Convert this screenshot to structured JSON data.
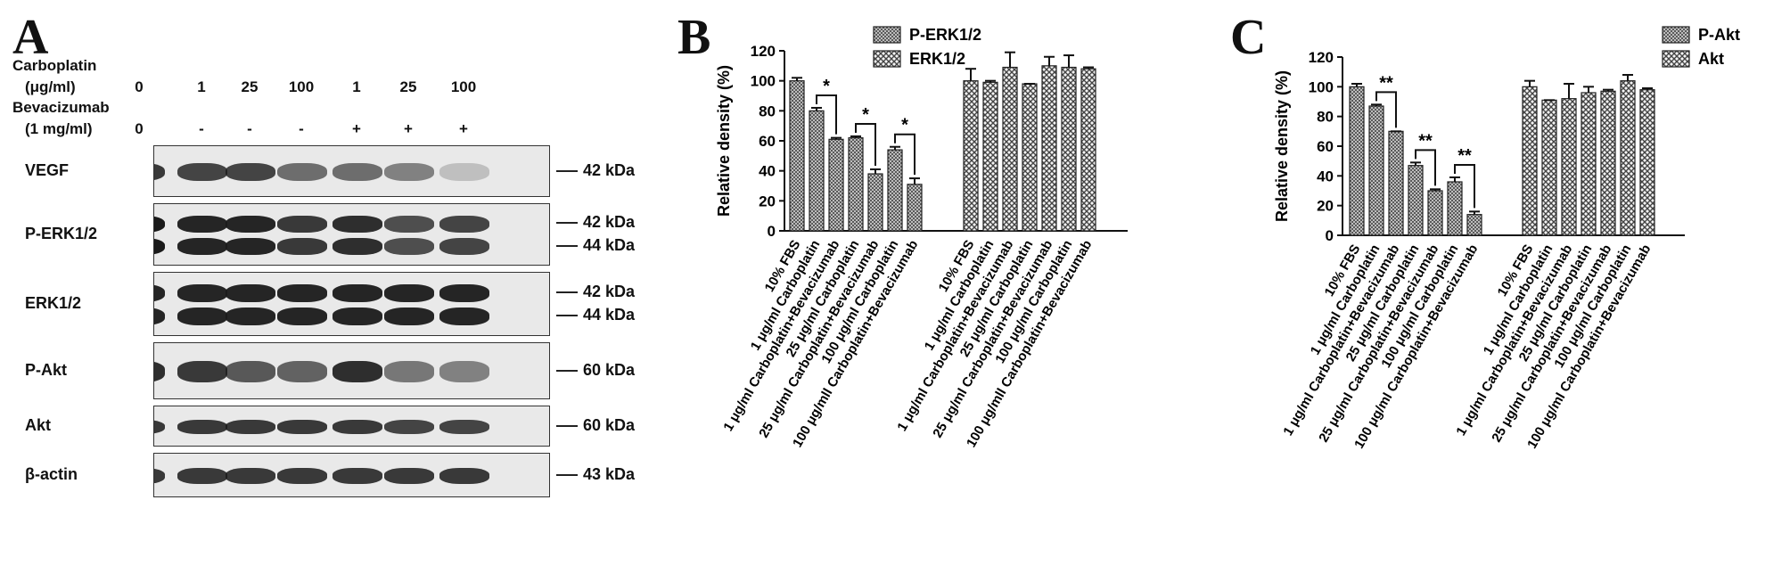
{
  "panelA": {
    "letter": "A",
    "carboplatin_label_1": "Carboplatin",
    "carboplatin_label_2": "(μg/ml)",
    "bevacizumab_label_1": "Bevacizumab",
    "bevacizumab_label_2": "(1 mg/ml)",
    "carboplatin_values": [
      "0",
      "1",
      "25",
      "100",
      "1",
      "25",
      "100"
    ],
    "bevacizumab_values": [
      "0",
      "-",
      "-",
      "-",
      "+",
      "+",
      "+"
    ],
    "blots": [
      {
        "name": "VEGF",
        "markers": [
          "42 kDa"
        ],
        "intensity": [
          0.85,
          0.8,
          0.8,
          0.6,
          0.6,
          0.5,
          0.2
        ]
      },
      {
        "name": "P-ERK1/2",
        "markers": [
          "42 kDa",
          "44 kDa"
        ],
        "intensity": [
          1.0,
          0.95,
          0.95,
          0.85,
          0.9,
          0.75,
          0.8
        ]
      },
      {
        "name": "ERK1/2",
        "markers": [
          "42 kDa",
          "44 kDa"
        ],
        "intensity": [
          0.95,
          0.95,
          0.95,
          0.95,
          0.95,
          0.95,
          0.95
        ]
      },
      {
        "name": "P-Akt",
        "markers": [
          "60 kDa"
        ],
        "intensity": [
          0.9,
          0.85,
          0.7,
          0.65,
          0.9,
          0.55,
          0.5
        ]
      },
      {
        "name": "Akt",
        "markers": [
          "60 kDa"
        ],
        "intensity": [
          0.85,
          0.85,
          0.85,
          0.85,
          0.85,
          0.8,
          0.8
        ]
      },
      {
        "name": "β-actin",
        "markers": [
          "43 kDa"
        ],
        "intensity": [
          0.85,
          0.85,
          0.85,
          0.85,
          0.85,
          0.85,
          0.85
        ]
      }
    ]
  },
  "chart_data": [
    {
      "panel": "B",
      "type": "bar",
      "title": "",
      "ylabel": "Relative density (%)",
      "xlabel": "",
      "ylim": [
        0,
        120
      ],
      "yticks": [
        0,
        20,
        40,
        60,
        80,
        100,
        120
      ],
      "legend_position": "top-right",
      "categories": [
        "10% FBS",
        "1 μg/ml Carboplatin",
        "1 μg/ml Carboplatin+Bevacizumab",
        "25 μg/ml Carboplatin",
        "25 μg/ml Carboplatin+Bevacizumab",
        "100 μg/ml Carboplatin",
        "100 μg/mll Carboplatin+Bevacizumab"
      ],
      "series": [
        {
          "name": "P-ERK1/2",
          "values": [
            100,
            80,
            61,
            62,
            38,
            54,
            31
          ],
          "errors": [
            2,
            2,
            1,
            1,
            3,
            2,
            4
          ]
        },
        {
          "name": "ERK1/2",
          "values": [
            100,
            99,
            109,
            98,
            110,
            109,
            108
          ],
          "errors": [
            8,
            1,
            10,
            0,
            6,
            8,
            1
          ]
        }
      ],
      "significance": [
        {
          "pair": [
            1,
            2
          ],
          "label": "*"
        },
        {
          "pair": [
            3,
            4
          ],
          "label": "*"
        },
        {
          "pair": [
            5,
            6
          ],
          "label": "*"
        }
      ]
    },
    {
      "panel": "C",
      "type": "bar",
      "title": "",
      "ylabel": "Relative density (%)",
      "xlabel": "",
      "ylim": [
        0,
        120
      ],
      "yticks": [
        0,
        20,
        40,
        60,
        80,
        100,
        120
      ],
      "legend_position": "top-right",
      "categories": [
        "10% FBS",
        "1 μg/ml Carboplatin",
        "1 μg/ml Carboplatin+Bevacizumab",
        "25 μg/ml Carboplatin",
        "25 μg/ml Carboplatin+Bevacizumab",
        "100 μg/ml Carboplatin",
        "100 μg/ml Carboplatin+Bevacizumab"
      ],
      "series": [
        {
          "name": "P-Akt",
          "values": [
            100,
            87,
            70,
            47,
            30,
            36,
            14
          ],
          "errors": [
            2,
            1,
            0,
            2,
            1,
            3,
            2
          ]
        },
        {
          "name": "Akt",
          "values": [
            100,
            91,
            92,
            96,
            97,
            104,
            98
          ],
          "errors": [
            4,
            0,
            10,
            4,
            1,
            4,
            1
          ]
        }
      ],
      "significance": [
        {
          "pair": [
            1,
            2
          ],
          "label": "**"
        },
        {
          "pair": [
            3,
            4
          ],
          "label": "**"
        },
        {
          "pair": [
            5,
            6
          ],
          "label": "**"
        }
      ]
    }
  ]
}
